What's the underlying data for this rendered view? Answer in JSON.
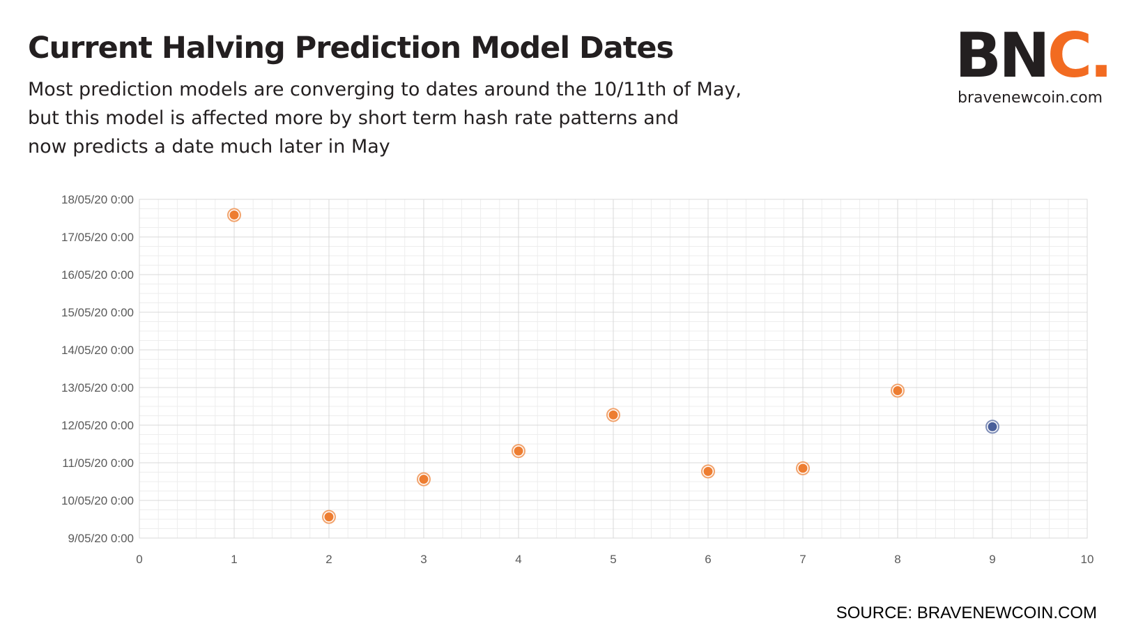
{
  "header": {
    "title": "Current Halving Prediction Model Dates",
    "subtitle_lines": [
      "Most prediction models are converging to dates around the 10/11th of May,",
      "but this model is affected more by short term hash rate patterns and",
      "now predicts a date much later in May"
    ]
  },
  "logo": {
    "text_bn": "BN",
    "text_c": "C",
    "text_dot": ".",
    "url": "bravenewcoin.com",
    "colors": {
      "dark": "#231f20",
      "accent": "#f26b21"
    }
  },
  "source": "SOURCE: BRAVENEWCOIN.COM",
  "chart_data": {
    "type": "scatter",
    "title": "",
    "xlabel": "",
    "ylabel": "",
    "xlim": [
      0,
      10
    ],
    "ylim": [
      "9/05/20 0:00",
      "18/05/20 0:00"
    ],
    "x_ticks": [
      "0",
      "1",
      "2",
      "3",
      "4",
      "5",
      "6",
      "7",
      "8",
      "9",
      "10"
    ],
    "y_ticks": [
      "9/05/20 0:00",
      "10/05/20 0:00",
      "11/05/20 0:00",
      "12/05/20 0:00",
      "13/05/20 0:00",
      "14/05/20 0:00",
      "15/05/20 0:00",
      "16/05/20 0:00",
      "17/05/20 0:00",
      "18/05/20 0:00"
    ],
    "grid": true,
    "legend": "none",
    "series": [
      {
        "color": "#ed7d31",
        "points": [
          {
            "x": 1,
            "y": "17/05/20 14:00"
          },
          {
            "x": 2,
            "y": "9/05/20 13:30"
          },
          {
            "x": 3,
            "y": "10/05/20 13:30"
          },
          {
            "x": 4,
            "y": "11/05/20 7:30"
          },
          {
            "x": 5,
            "y": "12/05/20 6:30"
          },
          {
            "x": 6,
            "y": "10/05/20 18:30"
          },
          {
            "x": 7,
            "y": "10/05/20 20:30"
          },
          {
            "x": 8,
            "y": "12/05/20 22:00"
          }
        ]
      },
      {
        "color": "#4a5f9a",
        "points": [
          {
            "x": 9,
            "y": "11/05/20 23:00"
          }
        ]
      }
    ]
  }
}
